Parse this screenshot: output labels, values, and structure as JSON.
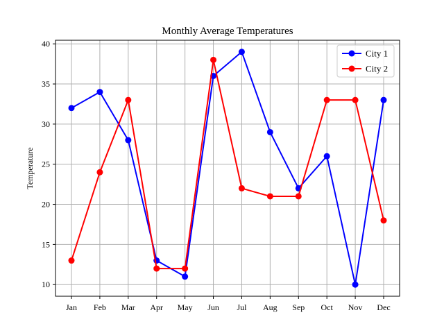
{
  "chart_data": {
    "type": "line",
    "title": "Monthly Average Temperatures",
    "xlabel": "",
    "ylabel": "Temperature",
    "categories": [
      "Jan",
      "Feb",
      "Mar",
      "Apr",
      "May",
      "Jun",
      "Jul",
      "Aug",
      "Sep",
      "Oct",
      "Nov",
      "Dec"
    ],
    "yticks": [
      10,
      15,
      20,
      25,
      30,
      35,
      40
    ],
    "ylim": [
      8.55,
      40.45
    ],
    "grid": true,
    "legend_position": "top-right",
    "series": [
      {
        "name": "City 1",
        "color": "#0000ff",
        "marker": "circle",
        "values": [
          32,
          34,
          28,
          13,
          11,
          36,
          39,
          29,
          22,
          26,
          10,
          33
        ]
      },
      {
        "name": "City 2",
        "color": "#ff0000",
        "marker": "circle",
        "values": [
          13,
          24,
          33,
          12,
          12,
          38,
          22,
          21,
          21,
          33,
          33,
          18
        ]
      }
    ]
  }
}
